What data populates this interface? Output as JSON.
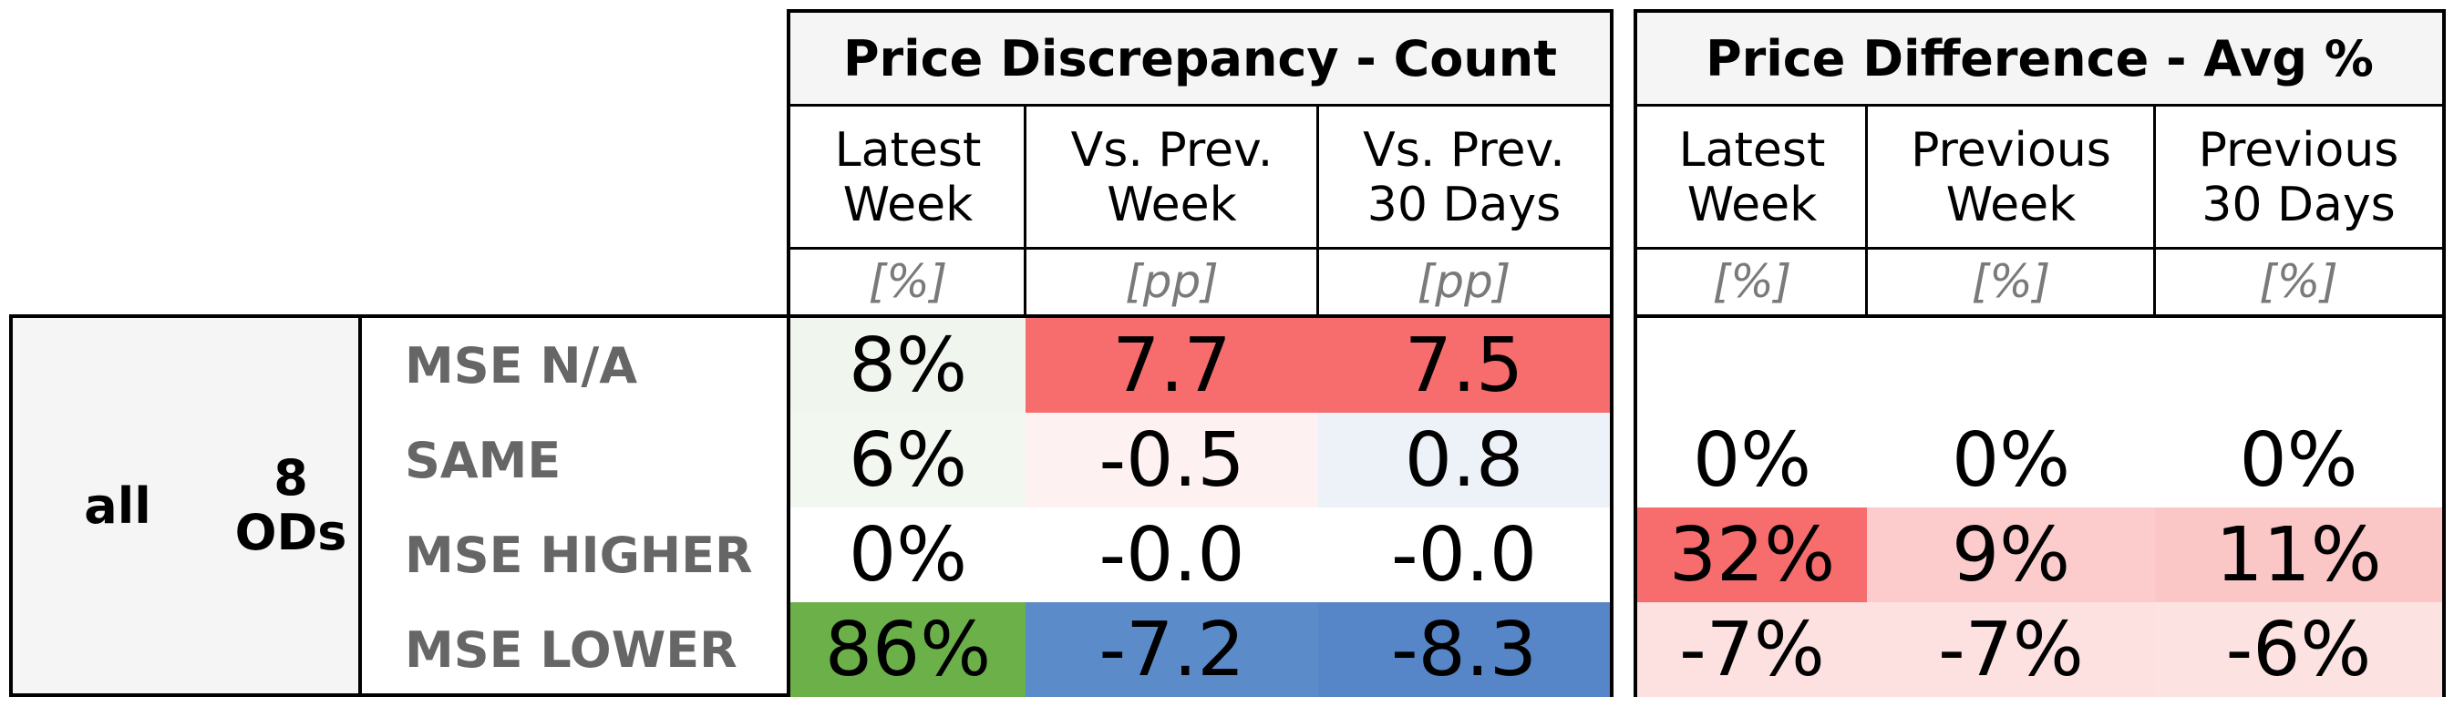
{
  "sections": {
    "left_title": "Price Discrepancy - Count",
    "right_title": "Price Difference - Avg %"
  },
  "left_columns": [
    {
      "label": "Latest\nWeek",
      "unit": "[%]"
    },
    {
      "label": "Vs. Prev.\nWeek",
      "unit": "[pp]"
    },
    {
      "label": "Vs. Prev.\n30 Days",
      "unit": "[pp]"
    }
  ],
  "right_columns": [
    {
      "label": "Latest\nWeek",
      "unit": "[%]"
    },
    {
      "label": "Previous\nWeek",
      "unit": "[%]"
    },
    {
      "label": "Previous\n30 Days",
      "unit": "[%]"
    }
  ],
  "group": {
    "label": "all",
    "count_label": "8\nODs"
  },
  "rows": [
    {
      "label": "MSE N/A",
      "left": [
        {
          "value": "8%",
          "color": "#f0f6ee"
        },
        {
          "value": "7.7",
          "color": "#f76c6c"
        },
        {
          "value": "7.5",
          "color": "#f76c6c"
        }
      ],
      "right": [
        {
          "value": "",
          "color": "#ffffff"
        },
        {
          "value": "",
          "color": "#ffffff"
        },
        {
          "value": "",
          "color": "#ffffff"
        }
      ]
    },
    {
      "label": "SAME",
      "left": [
        {
          "value": "6%",
          "color": "#f2f7f0"
        },
        {
          "value": "-0.5",
          "color": "#fdf1f1"
        },
        {
          "value": "0.8",
          "color": "#edf1f8"
        }
      ],
      "right": [
        {
          "value": "0%",
          "color": "#ffffff"
        },
        {
          "value": "0%",
          "color": "#ffffff"
        },
        {
          "value": "0%",
          "color": "#ffffff"
        }
      ]
    },
    {
      "label": "MSE HIGHER",
      "left": [
        {
          "value": "0%",
          "color": "#ffffff"
        },
        {
          "value": "-0.0",
          "color": "#ffffff"
        },
        {
          "value": "-0.0",
          "color": "#ffffff"
        }
      ],
      "right": [
        {
          "value": "32%",
          "color": "#f76c6c"
        },
        {
          "value": "9%",
          "color": "#fccccc"
        },
        {
          "value": "11%",
          "color": "#fbc6c6"
        }
      ]
    },
    {
      "label": "MSE LOWER",
      "left": [
        {
          "value": "86%",
          "color": "#6cb04a"
        },
        {
          "value": "-7.2",
          "color": "#5b8bc9"
        },
        {
          "value": "-8.3",
          "color": "#5686c7"
        }
      ],
      "right": [
        {
          "value": "-7%",
          "color": "#fde0e0"
        },
        {
          "value": "-7%",
          "color": "#fde0e0"
        },
        {
          "value": "-6%",
          "color": "#fde2e2"
        }
      ]
    }
  ]
}
